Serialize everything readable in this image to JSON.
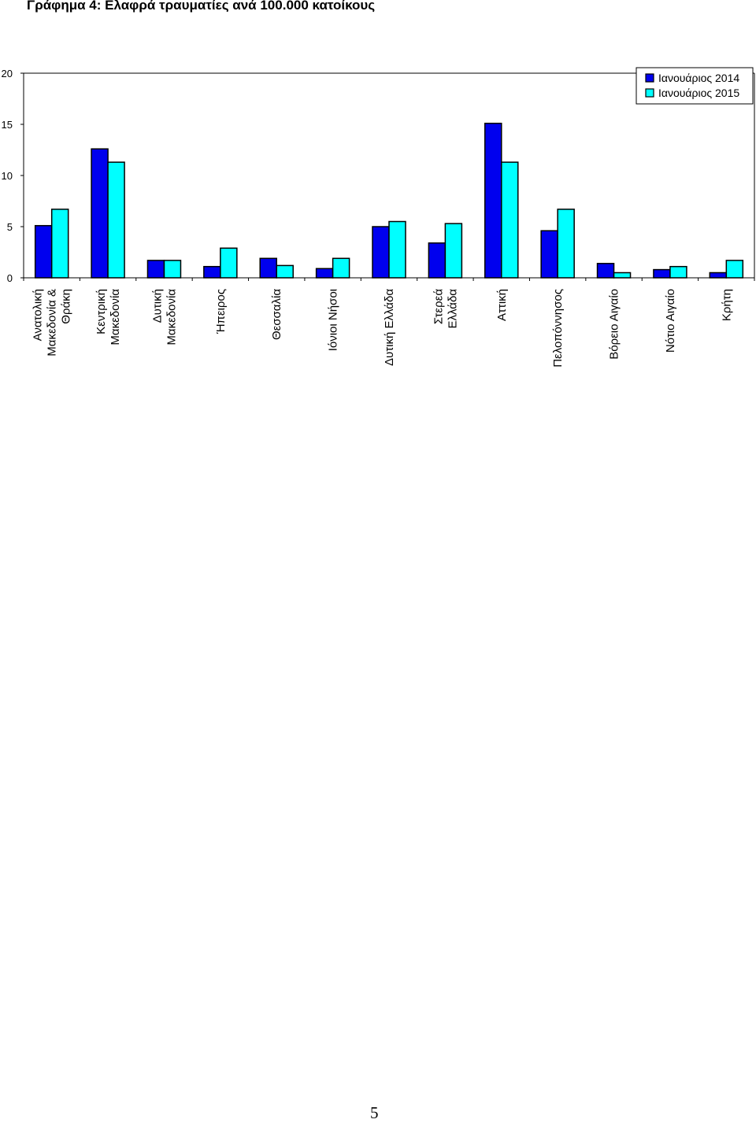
{
  "title": "Γράφημα 4: Ελαφρά τραυματίες ανά 100.000 κατοίκους",
  "page_number": "5",
  "chart_data": {
    "type": "bar",
    "title": "Γράφημα 4: Ελαφρά τραυματίες ανά 100.000 κατοίκους",
    "xlabel": "",
    "ylabel": "",
    "ylim": [
      0,
      20
    ],
    "yticks": [
      "0",
      "5",
      "10",
      "15",
      "20"
    ],
    "grid": false,
    "legend_position": "top-right",
    "categories": [
      [
        "Ανατολική",
        "Μακεδονία &",
        "Θράκη"
      ],
      [
        "Κεντρική",
        "Μακεδονία"
      ],
      [
        "Δυτική",
        "Μακεδονία"
      ],
      [
        "Ήπειρος"
      ],
      [
        "Θεσσαλία"
      ],
      [
        "Ιόνιοι Νήσοι"
      ],
      [
        "Δυτική Ελλάδα"
      ],
      [
        "Στερεά",
        "Ελλάδα"
      ],
      [
        "Αττική"
      ],
      [
        "Πελοπόννησος"
      ],
      [
        "Βόρειο Αιγαίο"
      ],
      [
        "Νότιο Αιγαίο"
      ],
      [
        "Κρήτη"
      ]
    ],
    "series": [
      {
        "name": "Ιανουάριος 2014",
        "color": "#0000ee",
        "values": [
          5.1,
          12.6,
          1.7,
          1.1,
          1.9,
          0.9,
          5.0,
          3.4,
          15.1,
          4.6,
          1.4,
          0.8,
          0.5
        ]
      },
      {
        "name": "Ιανουάριος 2015",
        "color": "#00ffff",
        "values": [
          6.7,
          11.3,
          1.7,
          2.9,
          1.2,
          1.9,
          5.5,
          5.3,
          11.3,
          6.7,
          0.5,
          1.1,
          1.7
        ]
      }
    ]
  }
}
